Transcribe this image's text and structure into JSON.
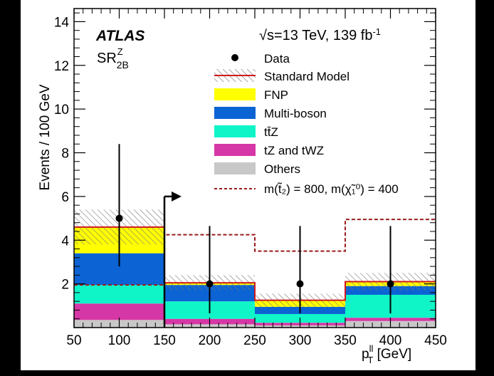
{
  "figure": {
    "experiment": "ATLAS",
    "energy": "√s=13 TeV, 139 fb",
    "energy_sup": "-1",
    "region_main": "SR",
    "region_sup": "Z",
    "region_sub": "2B",
    "colors": {
      "FNP": "#ffff00",
      "Multi-boson": "#0b63d4",
      "ttZ": "#10f5c8",
      "tZ and tWZ": "#d637a6",
      "Others": "#c8c8c8",
      "sm_line": "#d21a1a",
      "signal": "#9a1b1b",
      "arrow": "#000000"
    }
  },
  "legend": {
    "data": "Data",
    "sm": "Standard Model",
    "fnp": "FNP",
    "multiboson": "Multi-boson",
    "ttz": "tt̄Z",
    "tz": "tZ and tWZ",
    "others": "Others",
    "signal": "m(t̃₂) = 800, m(χ̃₁⁰) = 400"
  },
  "chart_data": {
    "type": "bar",
    "stacked": true,
    "xlabel": "p_T^ll [GeV]",
    "ylabel": "Events / 100 GeV",
    "xlim": [
      50,
      450
    ],
    "ylim": [
      0,
      14.6
    ],
    "x_ticks": [
      50,
      100,
      150,
      200,
      250,
      300,
      350,
      400,
      450
    ],
    "y_ticks": [
      2,
      4,
      6,
      8,
      10,
      12,
      14
    ],
    "bin_edges": [
      50,
      150,
      250,
      350,
      450
    ],
    "stack_order": [
      "Others",
      "tZ and tWZ",
      "ttZ",
      "Multi-boson",
      "FNP"
    ],
    "series": [
      {
        "name": "Others",
        "values": [
          0.35,
          0.15,
          0.1,
          0.3
        ]
      },
      {
        "name": "tZ and tWZ",
        "values": [
          0.75,
          0.25,
          0.12,
          0.15
        ]
      },
      {
        "name": "ttZ",
        "values": [
          0.85,
          0.8,
          0.4,
          1.05
        ]
      },
      {
        "name": "Multi-boson",
        "values": [
          1.45,
          0.75,
          0.33,
          0.4
        ]
      },
      {
        "name": "FNP",
        "values": [
          1.2,
          0.1,
          0.3,
          0.2
        ]
      }
    ],
    "sm_total": [
      4.6,
      2.05,
      1.25,
      2.1
    ],
    "sm_uncertainty": [
      0.8,
      0.35,
      0.3,
      0.4
    ],
    "data_x": [
      100,
      200,
      300,
      400
    ],
    "data_y": [
      5,
      2,
      2,
      2
    ],
    "data_err_low": [
      2.2,
      1.35,
      1.35,
      1.35
    ],
    "data_err_high": [
      3.4,
      2.65,
      2.65,
      2.65
    ],
    "signal_values": [
      1.95,
      4.25,
      3.5,
      4.95
    ],
    "cut_arrow_x": 150,
    "cut_arrow_height": 6.0
  }
}
